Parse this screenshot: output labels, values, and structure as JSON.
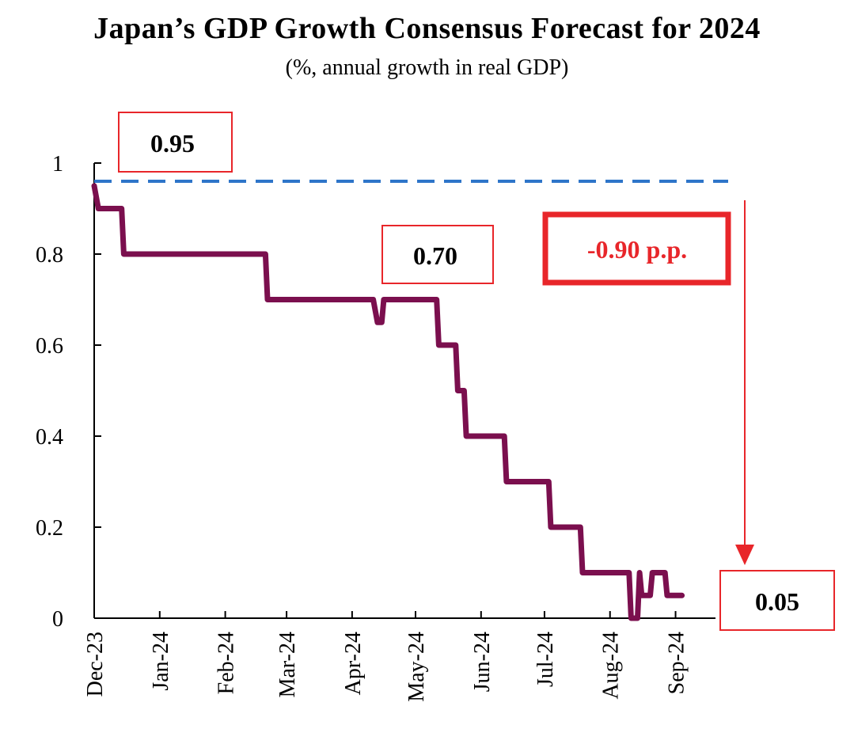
{
  "chart_data": {
    "type": "line",
    "title": "Japan’s GDP Growth Consensus Forecast for 2024",
    "subtitle": "(%, annual growth in real GDP)",
    "xlabel": "",
    "ylabel": "",
    "ylim": [
      0,
      1
    ],
    "yticks": [
      "0",
      "0.2",
      "0.4",
      "0.6",
      "0.8",
      "1"
    ],
    "grid": false,
    "x_tick_labels": [
      "Dec-23",
      "Jan-24",
      "Feb-24",
      "Mar-24",
      "Apr-24",
      "May-24",
      "Jun-24",
      "Jul-24",
      "Aug-24",
      "Sep-24"
    ],
    "series": [
      {
        "name": "",
        "color": "#7b0f4e",
        "points": [
          {
            "x": "2023-12-01",
            "y": 0.95
          },
          {
            "x": "2023-12-03",
            "y": 0.9
          },
          {
            "x": "2023-12-14",
            "y": 0.9
          },
          {
            "x": "2023-12-15",
            "y": 0.8
          },
          {
            "x": "2024-02-20",
            "y": 0.8
          },
          {
            "x": "2024-02-21",
            "y": 0.7
          },
          {
            "x": "2024-04-11",
            "y": 0.7
          },
          {
            "x": "2024-04-13",
            "y": 0.65
          },
          {
            "x": "2024-04-15",
            "y": 0.65
          },
          {
            "x": "2024-04-16",
            "y": 0.7
          },
          {
            "x": "2024-05-11",
            "y": 0.7
          },
          {
            "x": "2024-05-12",
            "y": 0.6
          },
          {
            "x": "2024-05-20",
            "y": 0.6
          },
          {
            "x": "2024-05-21",
            "y": 0.5
          },
          {
            "x": "2024-05-24",
            "y": 0.5
          },
          {
            "x": "2024-05-25",
            "y": 0.4
          },
          {
            "x": "2024-06-12",
            "y": 0.4
          },
          {
            "x": "2024-06-13",
            "y": 0.3
          },
          {
            "x": "2024-07-03",
            "y": 0.3
          },
          {
            "x": "2024-07-04",
            "y": 0.2
          },
          {
            "x": "2024-07-18",
            "y": 0.2
          },
          {
            "x": "2024-07-19",
            "y": 0.1
          },
          {
            "x": "2024-08-10",
            "y": 0.1
          },
          {
            "x": "2024-08-11",
            "y": 0.0
          },
          {
            "x": "2024-08-14",
            "y": 0.0
          },
          {
            "x": "2024-08-15",
            "y": 0.1
          },
          {
            "x": "2024-08-16",
            "y": 0.05
          },
          {
            "x": "2024-08-20",
            "y": 0.05
          },
          {
            "x": "2024-08-21",
            "y": 0.1
          },
          {
            "x": "2024-08-27",
            "y": 0.1
          },
          {
            "x": "2024-08-28",
            "y": 0.05
          },
          {
            "x": "2024-09-04",
            "y": 0.05
          }
        ]
      }
    ],
    "reference_line": {
      "y": 0.96,
      "color": "#2e75c9",
      "style": "dashed"
    },
    "annotations": [
      {
        "text": "0.95",
        "color": "#000000",
        "box_color": "#e8262a"
      },
      {
        "text": "0.70",
        "color": "#000000",
        "box_color": "#e8262a"
      },
      {
        "text": "-0.90 p.p.",
        "color": "#e8262a",
        "box_color": "#e8262a"
      },
      {
        "text": "0.05",
        "color": "#000000",
        "box_color": "#e8262a"
      }
    ]
  }
}
